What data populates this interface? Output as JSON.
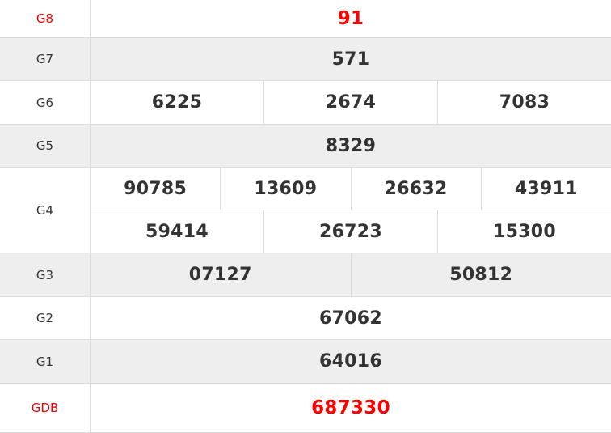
{
  "rows": [
    {
      "label": "G8",
      "lines": [
        [
          "91"
        ]
      ],
      "highlight": true
    },
    {
      "label": "G7",
      "lines": [
        [
          "571"
        ]
      ]
    },
    {
      "label": "G6",
      "lines": [
        [
          "6225",
          "2674",
          "7083"
        ]
      ]
    },
    {
      "label": "G5",
      "lines": [
        [
          "8329"
        ]
      ]
    },
    {
      "label": "G4",
      "lines": [
        [
          "90785",
          "13609",
          "26632",
          "43911"
        ],
        [
          "59414",
          "26723",
          "15300"
        ]
      ]
    },
    {
      "label": "G3",
      "lines": [
        [
          "07127",
          "50812"
        ]
      ]
    },
    {
      "label": "G2",
      "lines": [
        [
          "67062"
        ]
      ]
    },
    {
      "label": "G1",
      "lines": [
        [
          "64016"
        ]
      ]
    },
    {
      "label": "GDB",
      "lines": [
        [
          "687330"
        ]
      ],
      "highlight": true
    }
  ],
  "colors": {
    "highlight": "#ff0000",
    "text": "#333333",
    "alt_row": "#eeeeee"
  }
}
